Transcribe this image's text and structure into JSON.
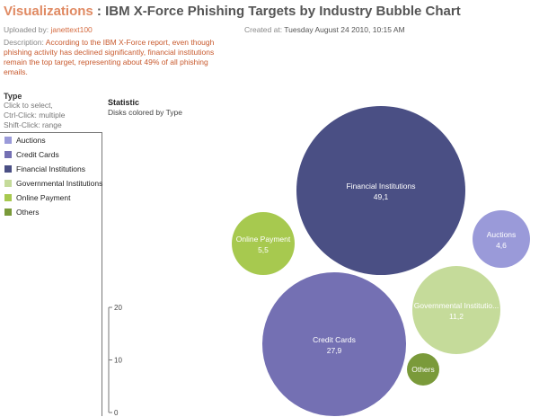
{
  "header": {
    "viz_label": "Visualizations",
    "separator": " : ",
    "title": "IBM X-Force Phishing Targets by Industry Bubble Chart"
  },
  "meta": {
    "uploaded_label": "Uploaded by:",
    "uploader": "janettext100",
    "created_label": "Created at:",
    "created_value": "Tuesday August 24 2010, 10:15 AM",
    "description_label": "Description:",
    "description": "According to the IBM X-Force report, even though phishing activity has declined significantly, financial institutions remain the top target, representing about 49% of all phishing emails."
  },
  "type_panel": {
    "heading": "Type",
    "hint_1": "Click to select,",
    "hint_2": "Ctrl-Click: multiple",
    "hint_3": "Shift-Click: range",
    "items": [
      {
        "label": "Auctions",
        "color": "#9a9ad9"
      },
      {
        "label": "Credit Cards",
        "color": "#7470b3"
      },
      {
        "label": "Financial Institutions",
        "color": "#4a4f84"
      },
      {
        "label": "Governmental Institutions",
        "color": "#c5db9a"
      },
      {
        "label": "Online Payment",
        "color": "#a7c94f"
      },
      {
        "label": "Others",
        "color": "#7a9a3a"
      }
    ]
  },
  "statistic": {
    "heading": "Statistic",
    "subheading": "Disks colored by Type"
  },
  "size_scale": {
    "ticks": [
      "20",
      "10",
      "0"
    ],
    "values": [
      20,
      10,
      0
    ]
  },
  "chart_data": {
    "type": "bubble",
    "size_scale_range": [
      0,
      20
    ],
    "bubbles": [
      {
        "label": "Financial Institutions",
        "value_text": "49,1",
        "value": 49.1,
        "color": "#4a4f84",
        "text_color": "#ffffff"
      },
      {
        "label": "Credit Cards",
        "value_text": "27,9",
        "value": 27.9,
        "color": "#7470b3",
        "text_color": "#ffffff"
      },
      {
        "label": "Governmental Institutio...",
        "value_text": "11,2",
        "value": 11.2,
        "color": "#c5db9a",
        "text_color": "#ffffff"
      },
      {
        "label": "Online Payment",
        "value_text": "5,5",
        "value": 5.5,
        "color": "#a7c94f",
        "text_color": "#ffffff"
      },
      {
        "label": "Auctions",
        "value_text": "4,6",
        "value": 4.6,
        "color": "#9a9ad9",
        "text_color": "#ffffff"
      },
      {
        "label": "Others",
        "value_text": "",
        "value": null,
        "color": "#7a9a3a",
        "text_color": "#ffffff"
      }
    ]
  }
}
